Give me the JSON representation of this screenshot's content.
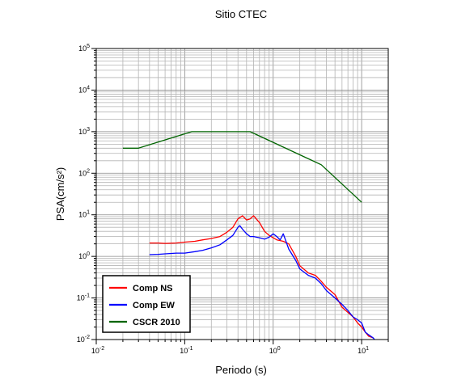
{
  "chart_data": {
    "type": "line",
    "title": "Sitio CTEC",
    "xlabel": "Periodo (s)",
    "ylabel": "PSA(cm/s²)",
    "xscale": "log",
    "yscale": "log",
    "xlim": [
      0.01,
      20
    ],
    "ylim": [
      0.01,
      100000
    ],
    "grid": true,
    "legend_position": "bottom-left",
    "x_tick_labels": [
      "10-2",
      "10-1",
      "100",
      "101"
    ],
    "y_tick_labels": [
      "10-2",
      "10-1",
      "100",
      "101",
      "102",
      "103",
      "104",
      "105"
    ],
    "series": [
      {
        "name": "Comp NS",
        "color": "#ff0000",
        "x": [
          0.04,
          0.05,
          0.06,
          0.08,
          0.1,
          0.13,
          0.16,
          0.2,
          0.25,
          0.3,
          0.35,
          0.4,
          0.45,
          0.5,
          0.55,
          0.6,
          0.7,
          0.8,
          0.9,
          1.0,
          1.1,
          1.2,
          1.3,
          1.5,
          1.8,
          2.0,
          2.5,
          3.0,
          3.5,
          4.0,
          5.0,
          6.0,
          7.0,
          8.0,
          9.0,
          10.0,
          11.0,
          12.0,
          13.5
        ],
        "y": [
          2.1,
          2.1,
          2.05,
          2.1,
          2.2,
          2.3,
          2.5,
          2.7,
          3.0,
          3.8,
          5.0,
          8.0,
          9.5,
          7.5,
          8.0,
          9.5,
          6.5,
          4.0,
          3.2,
          2.8,
          2.5,
          2.4,
          2.3,
          2.0,
          1.0,
          0.6,
          0.4,
          0.35,
          0.25,
          0.18,
          0.12,
          0.06,
          0.045,
          0.035,
          0.025,
          0.02,
          0.015,
          0.012,
          0.011
        ]
      },
      {
        "name": "Comp EW",
        "color": "#0000ff",
        "x": [
          0.04,
          0.05,
          0.06,
          0.08,
          0.1,
          0.13,
          0.16,
          0.2,
          0.25,
          0.3,
          0.35,
          0.4,
          0.42,
          0.45,
          0.5,
          0.55,
          0.6,
          0.7,
          0.8,
          0.9,
          1.0,
          1.1,
          1.2,
          1.3,
          1.5,
          1.8,
          2.0,
          2.5,
          3.0,
          3.5,
          4.0,
          5.0,
          6.0,
          7.0,
          8.0,
          9.0,
          10.0,
          11.0,
          12.0,
          13.5,
          14.0
        ],
        "y": [
          1.1,
          1.12,
          1.15,
          1.2,
          1.2,
          1.3,
          1.4,
          1.6,
          1.9,
          2.5,
          3.2,
          5.0,
          5.5,
          4.5,
          3.5,
          3.0,
          3.0,
          2.8,
          2.6,
          2.9,
          3.5,
          3.0,
          2.5,
          3.5,
          1.5,
          0.8,
          0.5,
          0.35,
          0.3,
          0.22,
          0.15,
          0.1,
          0.07,
          0.05,
          0.035,
          0.03,
          0.025,
          0.015,
          0.013,
          0.011,
          0.01
        ]
      },
      {
        "name": "CSCR 2010",
        "color": "#006400",
        "x": [
          0.02,
          0.03,
          0.12,
          0.55,
          3.5,
          10.0
        ],
        "y": [
          400,
          400,
          1000,
          1000,
          160,
          20
        ]
      }
    ]
  }
}
